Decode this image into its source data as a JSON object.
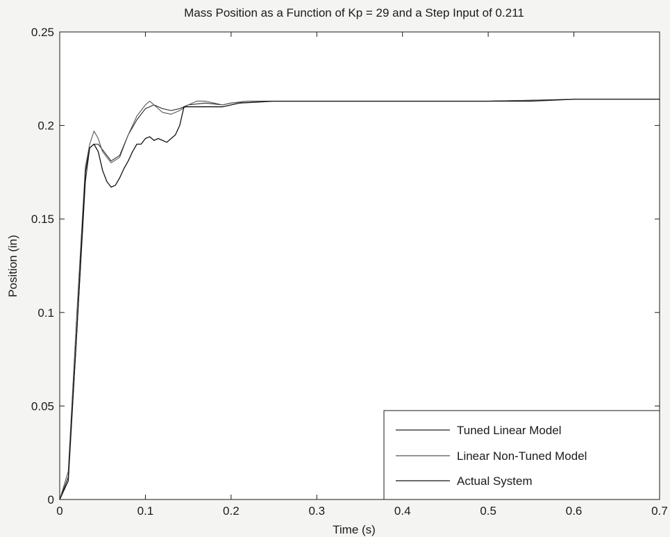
{
  "chart_data": {
    "type": "line",
    "title": "Mass Position as a Function of Kp = 29 and a Step Input of 0.211",
    "xlabel": "Time (s)",
    "ylabel": "Position (in)",
    "xlim": [
      0,
      0.7
    ],
    "ylim": [
      0,
      0.25
    ],
    "xticks": [
      0,
      0.1,
      0.2,
      0.3,
      0.4,
      0.5,
      0.6,
      0.7
    ],
    "yticks": [
      0,
      0.05,
      0.1,
      0.15,
      0.2,
      0.25
    ],
    "xtick_labels": [
      "0",
      "0.1",
      "0.2",
      "0.3",
      "0.4",
      "0.5",
      "0.6",
      "0.7"
    ],
    "ytick_labels": [
      "0",
      "0.05",
      "0.1",
      "0.15",
      "0.2",
      "0.25"
    ],
    "grid": false,
    "legend_position": "bottom-right",
    "series": [
      {
        "name": "Tuned Linear Model",
        "color": "#222222",
        "x": [
          0,
          0.01,
          0.02,
          0.03,
          0.035,
          0.04,
          0.045,
          0.05,
          0.06,
          0.07,
          0.08,
          0.09,
          0.1,
          0.11,
          0.12,
          0.13,
          0.14,
          0.15,
          0.17,
          0.19,
          0.2,
          0.22,
          0.25,
          0.3,
          0.4,
          0.5,
          0.6,
          0.7
        ],
        "y": [
          0,
          0.012,
          0.09,
          0.17,
          0.188,
          0.19,
          0.19,
          0.187,
          0.181,
          0.184,
          0.195,
          0.203,
          0.209,
          0.211,
          0.209,
          0.208,
          0.209,
          0.211,
          0.212,
          0.211,
          0.212,
          0.213,
          0.213,
          0.213,
          0.213,
          0.213,
          0.214,
          0.214
        ]
      },
      {
        "name": "Linear Non-Tuned Model",
        "color": "#555555",
        "x": [
          0,
          0.01,
          0.02,
          0.03,
          0.035,
          0.04,
          0.045,
          0.05,
          0.06,
          0.07,
          0.08,
          0.09,
          0.1,
          0.105,
          0.11,
          0.12,
          0.13,
          0.14,
          0.15,
          0.16,
          0.17,
          0.18,
          0.19,
          0.2,
          0.22,
          0.25,
          0.3,
          0.4,
          0.5,
          0.6,
          0.7
        ],
        "y": [
          0,
          0.015,
          0.1,
          0.178,
          0.19,
          0.197,
          0.193,
          0.186,
          0.18,
          0.183,
          0.195,
          0.205,
          0.211,
          0.213,
          0.211,
          0.207,
          0.206,
          0.208,
          0.211,
          0.213,
          0.213,
          0.212,
          0.211,
          0.212,
          0.213,
          0.213,
          0.213,
          0.213,
          0.213,
          0.214,
          0.214
        ]
      },
      {
        "name": "Actual System",
        "color": "#111111",
        "x": [
          0,
          0.01,
          0.02,
          0.03,
          0.035,
          0.04,
          0.045,
          0.05,
          0.055,
          0.06,
          0.065,
          0.07,
          0.075,
          0.08,
          0.085,
          0.09,
          0.095,
          0.1,
          0.105,
          0.11,
          0.115,
          0.12,
          0.125,
          0.13,
          0.135,
          0.14,
          0.145,
          0.15,
          0.16,
          0.17,
          0.18,
          0.19,
          0.2,
          0.21,
          0.25,
          0.3,
          0.35,
          0.4,
          0.45,
          0.5,
          0.55,
          0.6,
          0.7
        ],
        "y": [
          0,
          0.01,
          0.09,
          0.175,
          0.188,
          0.19,
          0.186,
          0.176,
          0.17,
          0.167,
          0.168,
          0.172,
          0.177,
          0.181,
          0.186,
          0.19,
          0.19,
          0.193,
          0.194,
          0.192,
          0.193,
          0.192,
          0.191,
          0.193,
          0.195,
          0.2,
          0.21,
          0.21,
          0.21,
          0.21,
          0.21,
          0.21,
          0.211,
          0.212,
          0.213,
          0.213,
          0.213,
          0.213,
          0.213,
          0.213,
          0.213,
          0.214,
          0.214
        ]
      }
    ]
  }
}
